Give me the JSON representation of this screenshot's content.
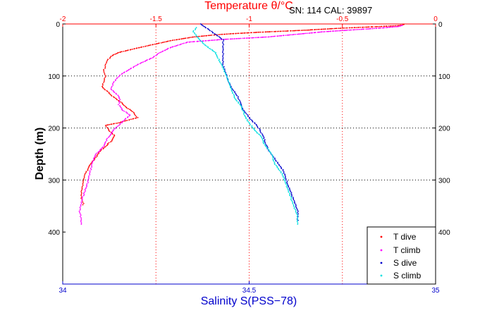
{
  "chart_data": {
    "type": "scatter",
    "info_text": "SN: 114  CAL: 39897",
    "ylabel": "Depth (m)",
    "ylim": [
      0,
      500
    ],
    "y_reversed": true,
    "yticks": [
      0,
      100,
      200,
      300,
      400
    ],
    "temperature_axis": {
      "label": "Temperature θ/°C",
      "position": "top",
      "color": "#ff0000",
      "lim": [
        -2,
        0
      ],
      "ticks": [
        -2,
        -1.5,
        -1,
        -0.5,
        0
      ],
      "tick_labels": [
        "-2",
        "-1.5",
        "-1",
        "-0.5",
        "0"
      ]
    },
    "salinity_axis": {
      "label": "Salinity S(PSS−78)",
      "position": "bottom",
      "color": "#0000cc",
      "lim": [
        34,
        35
      ],
      "ticks": [
        34,
        34.5,
        35
      ],
      "tick_labels": [
        "34",
        "34.5",
        "35"
      ]
    },
    "grid": true,
    "grid_x_temperature": [
      -1.5,
      -1,
      -0.5
    ],
    "grid_y": [
      100,
      200,
      300
    ],
    "legend_position": "bottom-right",
    "series": [
      {
        "name": "T dive",
        "color": "#ff0000",
        "axis": "temperature",
        "points": [
          [
            -0.17,
            1
          ],
          [
            -0.19,
            3
          ],
          [
            -0.3,
            5
          ],
          [
            -0.5,
            8
          ],
          [
            -0.7,
            12
          ],
          [
            -0.95,
            16
          ],
          [
            -1.15,
            20
          ],
          [
            -1.3,
            25
          ],
          [
            -1.42,
            32
          ],
          [
            -1.52,
            40
          ],
          [
            -1.62,
            48
          ],
          [
            -1.7,
            55
          ],
          [
            -1.74,
            62
          ],
          [
            -1.76,
            70
          ],
          [
            -1.77,
            80
          ],
          [
            -1.78,
            90
          ],
          [
            -1.77,
            100
          ],
          [
            -1.78,
            110
          ],
          [
            -1.79,
            120
          ],
          [
            -1.76,
            130
          ],
          [
            -1.73,
            140
          ],
          [
            -1.69,
            150
          ],
          [
            -1.66,
            160
          ],
          [
            -1.62,
            170
          ],
          [
            -1.6,
            180
          ],
          [
            -1.7,
            190
          ],
          [
            -1.77,
            195
          ],
          [
            -1.75,
            205
          ],
          [
            -1.72,
            215
          ],
          [
            -1.74,
            225
          ],
          [
            -1.77,
            235
          ],
          [
            -1.8,
            245
          ],
          [
            -1.83,
            260
          ],
          [
            -1.86,
            275
          ],
          [
            -1.88,
            290
          ],
          [
            -1.89,
            305
          ],
          [
            -1.9,
            320
          ],
          [
            -1.9,
            335
          ],
          [
            -1.89,
            345
          ],
          [
            -1.89,
            350
          ]
        ]
      },
      {
        "name": "T climb",
        "color": "#ff00ff",
        "axis": "temperature",
        "points": [
          [
            -1.9,
            385
          ],
          [
            -1.9,
            375
          ],
          [
            -1.91,
            360
          ],
          [
            -1.9,
            345
          ],
          [
            -1.89,
            330
          ],
          [
            -1.87,
            310
          ],
          [
            -1.86,
            295
          ],
          [
            -1.85,
            280
          ],
          [
            -1.84,
            265
          ],
          [
            -1.82,
            250
          ],
          [
            -1.78,
            235
          ],
          [
            -1.76,
            220
          ],
          [
            -1.73,
            205
          ],
          [
            -1.7,
            195
          ],
          [
            -1.67,
            185
          ],
          [
            -1.64,
            175
          ],
          [
            -1.68,
            165
          ],
          [
            -1.7,
            155
          ],
          [
            -1.69,
            145
          ],
          [
            -1.71,
            135
          ],
          [
            -1.74,
            125
          ],
          [
            -1.73,
            115
          ],
          [
            -1.71,
            105
          ],
          [
            -1.68,
            95
          ],
          [
            -1.63,
            85
          ],
          [
            -1.58,
            75
          ],
          [
            -1.52,
            65
          ],
          [
            -1.48,
            55
          ],
          [
            -1.42,
            45
          ],
          [
            -1.33,
            35
          ],
          [
            -1.15,
            30
          ],
          [
            -0.9,
            25
          ],
          [
            -0.6,
            15
          ],
          [
            -0.3,
            8
          ],
          [
            -0.2,
            5
          ],
          [
            -0.17,
            2
          ]
        ]
      },
      {
        "name": "S dive",
        "color": "#0000cc",
        "axis": "salinity",
        "points": [
          [
            34.37,
            0
          ],
          [
            34.38,
            5
          ],
          [
            34.39,
            10
          ],
          [
            34.41,
            20
          ],
          [
            34.43,
            30
          ],
          [
            34.43,
            45
          ],
          [
            34.43,
            60
          ],
          [
            34.43,
            80
          ],
          [
            34.44,
            100
          ],
          [
            34.45,
            120
          ],
          [
            34.47,
            140
          ],
          [
            34.48,
            160
          ],
          [
            34.5,
            180
          ],
          [
            34.52,
            195
          ],
          [
            34.53,
            205
          ],
          [
            34.54,
            220
          ],
          [
            34.55,
            240
          ],
          [
            34.57,
            260
          ],
          [
            34.59,
            280
          ],
          [
            34.6,
            300
          ],
          [
            34.61,
            320
          ],
          [
            34.62,
            340
          ],
          [
            34.63,
            360
          ],
          [
            34.63,
            380
          ]
        ]
      },
      {
        "name": "S climb",
        "color": "#00e0e0",
        "axis": "salinity",
        "points": [
          [
            34.63,
            385
          ],
          [
            34.63,
            370
          ],
          [
            34.62,
            350
          ],
          [
            34.61,
            330
          ],
          [
            34.6,
            310
          ],
          [
            34.59,
            290
          ],
          [
            34.57,
            270
          ],
          [
            34.56,
            250
          ],
          [
            34.54,
            230
          ],
          [
            34.53,
            215
          ],
          [
            34.51,
            200
          ],
          [
            34.49,
            180
          ],
          [
            34.48,
            160
          ],
          [
            34.46,
            140
          ],
          [
            34.45,
            120
          ],
          [
            34.44,
            100
          ],
          [
            34.43,
            85
          ],
          [
            34.42,
            70
          ],
          [
            34.41,
            55
          ],
          [
            34.38,
            40
          ],
          [
            34.36,
            25
          ],
          [
            34.35,
            15
          ],
          [
            34.36,
            5
          ]
        ]
      }
    ]
  }
}
